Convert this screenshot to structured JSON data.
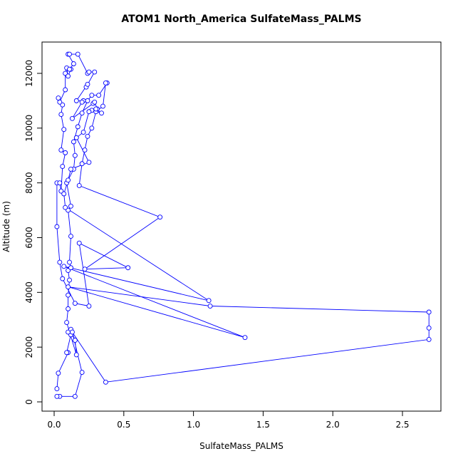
{
  "chart_data": {
    "type": "line",
    "title": "ATOM1 North_America SulfateMass_PALMS",
    "x_label": "SulfateMass_PALMS",
    "y_label": "Altitude (m)",
    "xlim": [
      -0.087,
      2.776
    ],
    "ylim": [
      -338,
      13144
    ],
    "xticks": [
      {
        "value": 0,
        "label": "0.0"
      },
      0.5,
      {
        "value": 1,
        "label": "1.0"
      },
      1.5,
      {
        "value": 2,
        "label": "2.0"
      },
      2.5
    ],
    "yticks": [
      0,
      2000,
      4000,
      6000,
      8000,
      10000,
      12000
    ],
    "series": [
      {
        "color": "#0000ff",
        "x": [
          0.02,
          0.03,
          0.1,
          0.09,
          0.12,
          0.1,
          0.12,
          0.15,
          0.16,
          0.09,
          0.1,
          0.1,
          0.11,
          0.1,
          0.12,
          0.11,
          0.12,
          0.1,
          0.12,
          0.09,
          0.14,
          0.15,
          0.14,
          0.17,
          0.2,
          0.24,
          0.27,
          0.32,
          0.38,
          0.37,
          0.35,
          0.3,
          0.27,
          0.24,
          0.22,
          0.2,
          0.18,
          0.76,
          0.22,
          0.53,
          0.18,
          0.25,
          0.15,
          0.06,
          0.04,
          0.02,
          0.02,
          0.04,
          0.05,
          0.06,
          0.08,
          0.05,
          0.07,
          0.05,
          0.06,
          0.03,
          0.04,
          0.08,
          0.08,
          0.09,
          0.1,
          0.12,
          0.11,
          0.14,
          0.1,
          0.11,
          0.17,
          0.24,
          0.25,
          0.29,
          0.23,
          0.24,
          0.16,
          0.21,
          0.2,
          0.13,
          0.28,
          0.29,
          0.31,
          0.3,
          0.34,
          0.27,
          0.25,
          0.21,
          0.16,
          0.25,
          0.12,
          0.1,
          0.07,
          0.08,
          1.11,
          0.07,
          1.37,
          0.1,
          1.12,
          2.69,
          2.69,
          2.69,
          0.37,
          0.13,
          0.2,
          0.15,
          0.04,
          0.02
        ],
        "values": [
          480,
          1050,
          1800,
          1800,
          2450,
          2550,
          2650,
          2250,
          1720,
          2900,
          3400,
          3900,
          4450,
          4800,
          4900,
          5100,
          6050,
          7000,
          7150,
          8000,
          8500,
          9000,
          9500,
          10050,
          10550,
          11000,
          11200,
          11200,
          11650,
          11650,
          10800,
          10600,
          10000,
          9700,
          9200,
          8700,
          7900,
          6750,
          4850,
          4900,
          5800,
          3500,
          3600,
          4500,
          5100,
          6400,
          8000,
          8000,
          7700,
          8600,
          9100,
          9200,
          9950,
          10500,
          10850,
          11100,
          10950,
          11400,
          12000,
          12200,
          11900,
          12150,
          12150,
          12350,
          12700,
          12700,
          12700,
          12000,
          12050,
          12050,
          11500,
          11600,
          11000,
          11000,
          10950,
          10350,
          10900,
          10950,
          10700,
          10700,
          10550,
          10650,
          10600,
          9850,
          9650,
          8750,
          8500,
          8100,
          7600,
          7100,
          3700,
          4950,
          2350,
          4200,
          3500,
          3280,
          2700,
          2280,
          720,
          2550,
          1080,
          200,
          200,
          200
        ]
      }
    ]
  }
}
